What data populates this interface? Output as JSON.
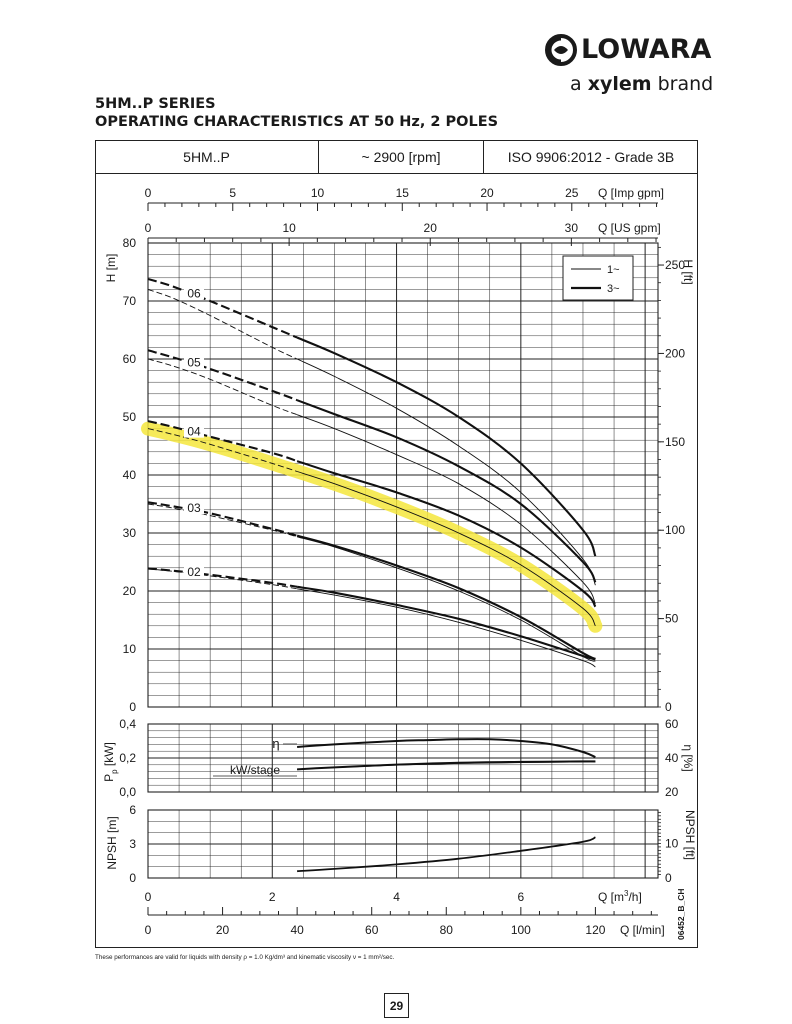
{
  "brand": {
    "logo_text": "LOWARA",
    "tagline_a": "a",
    "tagline_brand_name": "xylem",
    "tagline_b": "brand",
    "icon": "lowara-ring-logo-icon"
  },
  "heading": {
    "line1": "5HM..P SERIES",
    "line2": "OPERATING CHARACTERISTICS AT 50 Hz, 2 POLES"
  },
  "table_header": {
    "model": "5HM..P",
    "speed": "~ 2900 [rpm]",
    "standard": "ISO 9906:2012 - Grade 3B"
  },
  "footnote": "These performances are valid for liquids with density ρ = 1.0 Kg/dm³ and kinematic viscosity ν = 1 mm²/sec.",
  "page_number": "29",
  "figure_code": "06452_B_CH",
  "colors": {
    "highlight": "#f5e63c",
    "curve": "#111111",
    "grid": "#222222"
  },
  "chart_data": [
    {
      "type": "line",
      "panel": "head",
      "ylabel": "H [m]",
      "y2label": "H [ft]",
      "ylim": [
        0,
        80
      ],
      "yticks": [
        "0",
        "10",
        "20",
        "30",
        "40",
        "50",
        "60",
        "70",
        "80"
      ],
      "y2ticks": [
        "50",
        "100",
        "150",
        "200",
        "250"
      ],
      "y2tick_values_m": [
        15.24,
        30.48,
        45.72,
        60.96,
        76.2
      ],
      "xlim": [
        0,
        8.2
      ],
      "legend": {
        "placement": "top-right",
        "entries": [
          {
            "label": "1~",
            "style": "thin"
          },
          {
            "label": "3~",
            "style": "thick"
          }
        ]
      },
      "highlighted_series": "04",
      "series": [
        {
          "name": "06",
          "phase": "3~",
          "x": [
            0,
            0.4,
            1,
            2,
            3,
            4,
            5,
            6,
            7,
            7.2
          ],
          "y": [
            73.8,
            72.5,
            70,
            65.5,
            61,
            56,
            50,
            42,
            30.5,
            26
          ]
        },
        {
          "name": "06",
          "phase": "1~",
          "x": [
            0,
            0.4,
            1,
            2,
            3,
            4,
            5,
            6,
            7,
            7.2
          ],
          "y": [
            72,
            70.5,
            67.5,
            62,
            57,
            51.5,
            45,
            37,
            25.5,
            21
          ]
        },
        {
          "name": "05",
          "phase": "3~",
          "x": [
            0,
            0.4,
            1,
            2,
            3,
            4,
            5,
            6,
            7,
            7.2
          ],
          "y": [
            61.5,
            60.3,
            58.3,
            54.5,
            50.5,
            46.5,
            41.5,
            35,
            25,
            21.5
          ]
        },
        {
          "name": "05",
          "phase": "1~",
          "x": [
            0,
            0.4,
            1,
            2,
            3,
            4,
            5,
            6,
            7,
            7.2
          ],
          "y": [
            60,
            58.8,
            56.5,
            52,
            48,
            43.5,
            38.5,
            31.5,
            21.5,
            17.8
          ]
        },
        {
          "name": "04",
          "phase": "3~",
          "x": [
            0,
            0.4,
            1,
            2,
            3,
            4,
            5,
            6,
            7,
            7.2
          ],
          "y": [
            49.3,
            48.3,
            46.6,
            43.8,
            40.3,
            37,
            33,
            27.5,
            20,
            17.3
          ]
        },
        {
          "name": "04",
          "phase": "1~",
          "x": [
            0,
            0.4,
            1,
            2,
            3,
            4,
            5,
            6,
            7,
            7.2
          ],
          "y": [
            48,
            47,
            45.3,
            42,
            38.5,
            34.5,
            30,
            24.5,
            17,
            14
          ]
        },
        {
          "name": "03",
          "phase": "3~",
          "x": [
            0,
            0.4,
            1,
            2,
            3,
            4,
            5,
            6,
            7,
            7.2
          ],
          "y": [
            35.3,
            34.6,
            33.4,
            30.7,
            27.8,
            24.4,
            20.5,
            15.5,
            9.3,
            8.3
          ]
        },
        {
          "name": "03",
          "phase": "1~",
          "x": [
            0,
            0.4,
            1,
            2,
            3,
            4,
            5,
            6,
            7,
            7.2
          ],
          "y": [
            35,
            34.3,
            33,
            30.5,
            27.6,
            24,
            20,
            15,
            8.7,
            7.9
          ]
        },
        {
          "name": "02",
          "phase": "3~",
          "x": [
            0,
            0.4,
            1,
            2,
            3,
            4,
            5,
            6,
            7,
            7.2
          ],
          "y": [
            23.9,
            23.5,
            22.8,
            21.4,
            19.7,
            17.6,
            15.2,
            12.2,
            8.8,
            8.2
          ]
        },
        {
          "name": "02",
          "phase": "1~",
          "x": [
            0,
            0.4,
            1,
            2,
            3,
            4,
            5,
            6,
            7,
            7.2
          ],
          "y": [
            23.8,
            23.4,
            22.6,
            21.1,
            19.3,
            17.2,
            14.6,
            11.5,
            8,
            6.9
          ]
        }
      ]
    },
    {
      "type": "line",
      "panel": "power_efficiency",
      "ylabel": "P p [kW]",
      "ylabel_main": "P",
      "ylabel_sub": "p",
      "ylabel_unit": "[kW]",
      "y2label": "η [%]",
      "ylim": [
        0,
        0.4
      ],
      "yticks": [
        "0,0",
        "0,2",
        "0,4"
      ],
      "y2lim": [
        20,
        60
      ],
      "y2ticks": [
        "20",
        "40",
        "60"
      ],
      "xlim": [
        0,
        8.2
      ],
      "series": [
        {
          "name": "η",
          "axis": "right",
          "x": [
            2.4,
            3,
            4,
            4.5,
            5,
            5.5,
            6,
            6.5,
            7,
            7.2
          ],
          "y": [
            46.5,
            48,
            50,
            50.5,
            51,
            51,
            50,
            48,
            43.5,
            40.5
          ]
        },
        {
          "name": "kW/stage",
          "phase": "3~",
          "axis": "left",
          "x": [
            2.4,
            3,
            4,
            5,
            6,
            7,
            7.2
          ],
          "y": [
            0.133,
            0.145,
            0.161,
            0.172,
            0.177,
            0.18,
            0.18
          ]
        },
        {
          "name": "kW/stage",
          "phase": "1~",
          "axis": "left",
          "x": [
            2.4,
            3,
            4,
            5,
            6,
            7,
            7.2
          ],
          "y": [
            0.133,
            0.144,
            0.158,
            0.168,
            0.173,
            0.177,
            0.177
          ]
        }
      ]
    },
    {
      "type": "line",
      "panel": "npsh",
      "ylabel": "NPSH [m]",
      "y2label": "NPSH [ft]",
      "ylim": [
        0,
        6
      ],
      "yticks": [
        "0",
        "3",
        "6"
      ],
      "y2ticks": [
        "0",
        "10"
      ],
      "y2tick_values_m": [
        0,
        3.048
      ],
      "xlim": [
        0,
        8.2
      ],
      "series": [
        {
          "name": "NPSH",
          "x": [
            2.4,
            3,
            4,
            5,
            6,
            7,
            7.2
          ],
          "y": [
            0.6,
            0.8,
            1.2,
            1.7,
            2.4,
            3.2,
            3.6
          ]
        }
      ]
    }
  ],
  "x_axes": {
    "imp_gpm": {
      "label": "Q [Imp gpm]",
      "ticks": [
        "0",
        "5",
        "10",
        "15",
        "20",
        "25"
      ],
      "m3h_per_unit": 0.2728
    },
    "us_gpm": {
      "label": "Q [US gpm]",
      "ticks": [
        "0",
        "10",
        "20",
        "30"
      ],
      "m3h_per_unit": 0.2271
    },
    "m3h": {
      "label": "Q [m³/h]",
      "label_main": "Q [m",
      "label_sup": "3",
      "label_end": "/h]",
      "ticks": [
        "0",
        "2",
        "4",
        "6"
      ]
    },
    "lmin": {
      "label": "Q [l/min]",
      "ticks": [
        "0",
        "20",
        "40",
        "60",
        "80",
        "100",
        "120"
      ],
      "m3h_per_unit": 0.06
    }
  },
  "annotations": {
    "eta": "η",
    "kw_stage": "kW/stage"
  }
}
